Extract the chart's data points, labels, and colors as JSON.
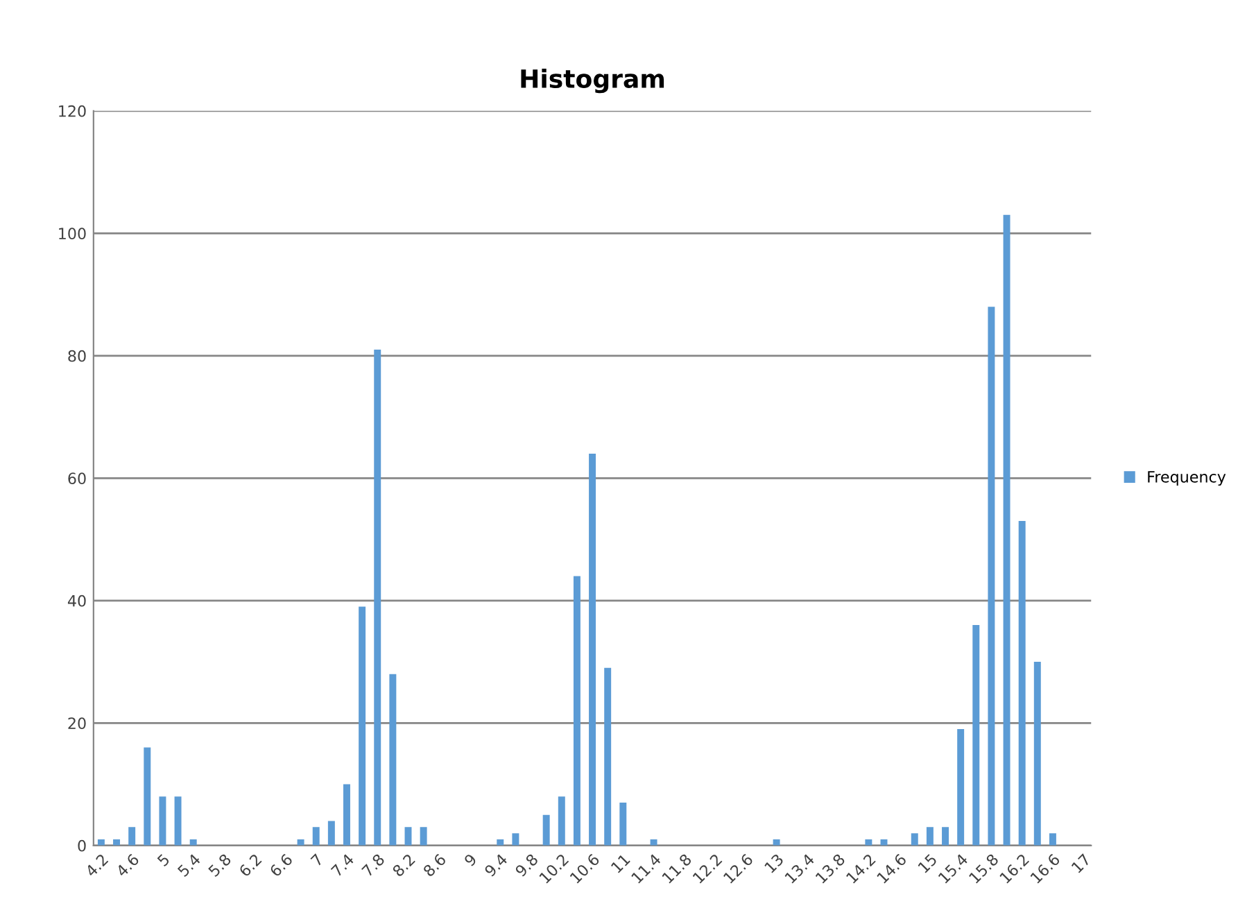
{
  "chart_data": {
    "type": "bar",
    "title": "Histogram",
    "categories": [
      "4.2",
      null,
      "4.6",
      null,
      "5",
      null,
      "5.4",
      null,
      "5.8",
      null,
      "6.2",
      null,
      "6.6",
      null,
      "7",
      null,
      "7.4",
      null,
      "7.8",
      null,
      "8.2",
      null,
      "8.6",
      null,
      "9",
      null,
      "9.4",
      null,
      "9.8",
      null,
      "10.2",
      null,
      "10.6",
      null,
      "11",
      null,
      "11.4",
      null,
      "11.8",
      null,
      "12.2",
      null,
      "12.6",
      null,
      "13",
      null,
      "13.4",
      null,
      "13.8",
      null,
      "14.2",
      null,
      "14.6",
      null,
      "15",
      null,
      "15.4",
      null,
      "15.8",
      null,
      "16.2",
      null,
      "16.6",
      null,
      "17"
    ],
    "series": [
      {
        "name": "Frequency",
        "color": "#5b9bd5",
        "values": [
          1,
          1,
          3,
          16,
          8,
          8,
          1,
          0,
          0,
          0,
          0,
          0,
          0,
          1,
          3,
          4,
          10,
          39,
          81,
          28,
          3,
          3,
          0,
          0,
          0,
          0,
          1,
          2,
          0,
          5,
          8,
          44,
          64,
          29,
          7,
          0,
          1,
          0,
          0,
          0,
          0,
          0,
          0,
          0,
          1,
          0,
          0,
          0,
          0,
          0,
          1,
          1,
          0,
          2,
          3,
          3,
          19,
          36,
          88,
          103,
          53,
          30,
          2,
          0,
          0
        ]
      }
    ],
    "ylim": [
      0,
      120
    ],
    "yticks": [
      0,
      20,
      40,
      60,
      80,
      100,
      120
    ],
    "grid": "y",
    "legend": "right"
  }
}
